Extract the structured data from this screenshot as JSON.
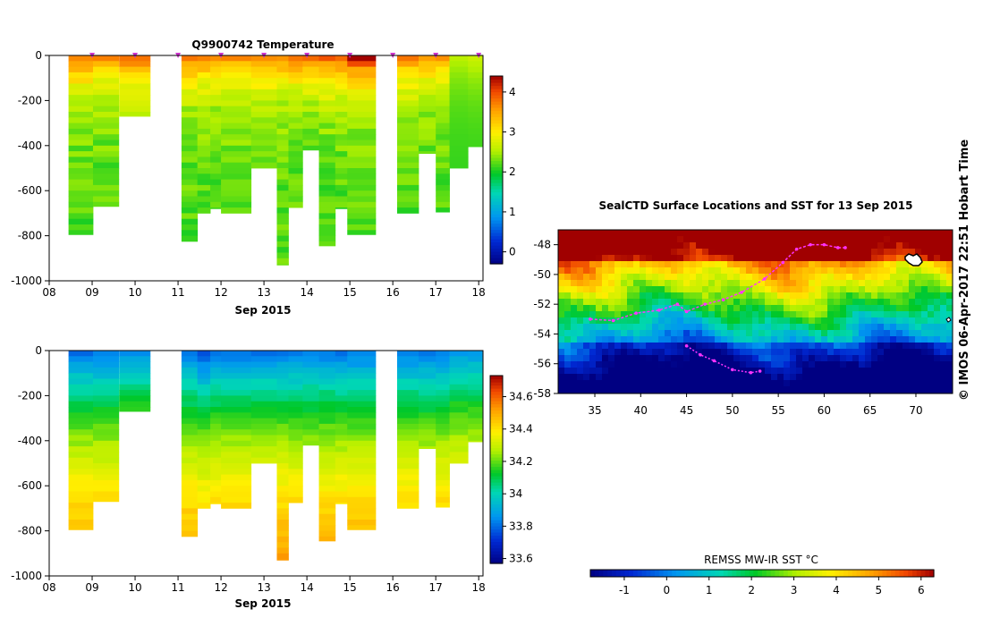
{
  "chart_data": [
    {
      "type": "heatmap",
      "title": "Q9900742  Temperature",
      "xlabel": "Sep 2015",
      "ylabel": "",
      "xlim": [
        8.0,
        18.1
      ],
      "ylim": [
        -1000,
        0
      ],
      "x_ticks": [
        "08",
        "09",
        "10",
        "11",
        "12",
        "13",
        "14",
        "15",
        "16",
        "17",
        "18"
      ],
      "y_ticks": [
        "0",
        "-200",
        "-400",
        "-600",
        "-800",
        "-1000"
      ],
      "colorbar": {
        "min": -0.3,
        "max": 4.4,
        "ticks": [
          "0",
          "1",
          "2",
          "3",
          "4"
        ]
      },
      "profile_markers_x": [
        9.0,
        10.0,
        11.0,
        12.0,
        13.0,
        14.0,
        15.0,
        16.0,
        17.0,
        18.0
      ],
      "profiles": [
        {
          "x": 8.45,
          "w": 0.57,
          "max_depth": 795,
          "surface": 4.0
        },
        {
          "x": 9.02,
          "w": 0.6,
          "max_depth": 670,
          "surface": 3.7
        },
        {
          "x": 9.63,
          "w": 0.72,
          "max_depth": 270,
          "surface": 4.1
        },
        {
          "x": 11.08,
          "w": 0.37,
          "max_depth": 825,
          "surface": 3.9
        },
        {
          "x": 11.45,
          "w": 0.3,
          "max_depth": 700,
          "surface": 3.9
        },
        {
          "x": 11.75,
          "w": 0.25,
          "max_depth": 680,
          "surface": 3.8
        },
        {
          "x": 12.0,
          "w": 0.7,
          "max_depth": 700,
          "surface": 3.8
        },
        {
          "x": 12.7,
          "w": 0.6,
          "max_depth": 500,
          "surface": 3.9
        },
        {
          "x": 13.3,
          "w": 0.27,
          "max_depth": 930,
          "surface": 3.8
        },
        {
          "x": 13.57,
          "w": 0.33,
          "max_depth": 675,
          "surface": 3.9
        },
        {
          "x": 13.9,
          "w": 0.38,
          "max_depth": 420,
          "surface": 3.8
        },
        {
          "x": 14.28,
          "w": 0.38,
          "max_depth": 845,
          "surface": 4.0
        },
        {
          "x": 14.66,
          "w": 0.28,
          "max_depth": 680,
          "surface": 4.1
        },
        {
          "x": 14.94,
          "w": 0.66,
          "max_depth": 795,
          "surface": 4.4
        },
        {
          "x": 16.1,
          "w": 0.5,
          "max_depth": 700,
          "surface": 3.8
        },
        {
          "x": 16.6,
          "w": 0.4,
          "max_depth": 435,
          "surface": 3.7
        },
        {
          "x": 17.0,
          "w": 0.32,
          "max_depth": 695,
          "surface": 3.6
        },
        {
          "x": 17.32,
          "w": 0.43,
          "max_depth": 500,
          "surface": 2.6
        },
        {
          "x": 17.75,
          "w": 0.33,
          "max_depth": 405,
          "surface": 2.7
        }
      ]
    },
    {
      "type": "heatmap",
      "title": "",
      "xlabel": "Sep 2015",
      "ylabel": "",
      "xlim": [
        8.0,
        18.1
      ],
      "ylim": [
        -1000,
        0
      ],
      "x_ticks": [
        "08",
        "09",
        "10",
        "11",
        "12",
        "13",
        "14",
        "15",
        "16",
        "17",
        "18"
      ],
      "y_ticks": [
        "0",
        "-200",
        "-400",
        "-600",
        "-800",
        "-1000"
      ],
      "colorbar": {
        "min": 33.57,
        "max": 34.73,
        "ticks": [
          "33.6",
          "33.8",
          "34",
          "34.2",
          "34.4",
          "34.6"
        ]
      },
      "profiles": [
        {
          "x": 8.45,
          "w": 0.57,
          "max_depth": 795,
          "surface": 33.8
        },
        {
          "x": 9.02,
          "w": 0.6,
          "max_depth": 670,
          "surface": 33.8
        },
        {
          "x": 9.63,
          "w": 0.72,
          "max_depth": 270,
          "surface": 33.85
        },
        {
          "x": 11.08,
          "w": 0.37,
          "max_depth": 825,
          "surface": 33.8
        },
        {
          "x": 11.45,
          "w": 0.3,
          "max_depth": 700,
          "surface": 33.75
        },
        {
          "x": 11.75,
          "w": 0.25,
          "max_depth": 680,
          "surface": 33.8
        },
        {
          "x": 12.0,
          "w": 0.7,
          "max_depth": 700,
          "surface": 33.8
        },
        {
          "x": 12.7,
          "w": 0.6,
          "max_depth": 500,
          "surface": 33.8
        },
        {
          "x": 13.3,
          "w": 0.27,
          "max_depth": 930,
          "surface": 33.8
        },
        {
          "x": 13.57,
          "w": 0.33,
          "max_depth": 675,
          "surface": 33.8
        },
        {
          "x": 13.9,
          "w": 0.38,
          "max_depth": 420,
          "surface": 33.8
        },
        {
          "x": 14.28,
          "w": 0.38,
          "max_depth": 845,
          "surface": 33.8
        },
        {
          "x": 14.66,
          "w": 0.28,
          "max_depth": 680,
          "surface": 33.8
        },
        {
          "x": 14.94,
          "w": 0.66,
          "max_depth": 795,
          "surface": 33.8
        },
        {
          "x": 16.1,
          "w": 0.5,
          "max_depth": 700,
          "surface": 33.8
        },
        {
          "x": 16.6,
          "w": 0.4,
          "max_depth": 435,
          "surface": 33.8
        },
        {
          "x": 17.0,
          "w": 0.32,
          "max_depth": 695,
          "surface": 33.8
        },
        {
          "x": 17.32,
          "w": 0.43,
          "max_depth": 500,
          "surface": 33.85
        },
        {
          "x": 17.75,
          "w": 0.33,
          "max_depth": 405,
          "surface": 33.85
        }
      ]
    },
    {
      "type": "heatmap",
      "title": "SealCTD Surface Locations and SST for 13 Sep 2015",
      "xlabel": "",
      "ylabel": "",
      "xlim": [
        31,
        74
      ],
      "ylim": [
        -58,
        -47
      ],
      "x_ticks": [
        "35",
        "40",
        "45",
        "50",
        "55",
        "60",
        "65",
        "70"
      ],
      "y_ticks": [
        "-48",
        "-50",
        "-52",
        "-54",
        "-56",
        "-58"
      ],
      "colorbar": {
        "label": "REMSS MW-IR SST °C",
        "min": -1.8,
        "max": 6.3,
        "ticks": [
          "-1",
          "0",
          "1",
          "2",
          "3",
          "4",
          "5",
          "6"
        ]
      },
      "track": [
        [
          34.5,
          -53.0
        ],
        [
          37,
          -53.1
        ],
        [
          39.5,
          -52.6
        ],
        [
          42,
          -52.4
        ],
        [
          44,
          -52.0
        ],
        [
          45,
          -52.5
        ],
        [
          47,
          -52.0
        ],
        [
          49,
          -51.7
        ],
        [
          51,
          -51.2
        ],
        [
          53.5,
          -50.3
        ],
        [
          55.5,
          -49.2
        ],
        [
          57,
          -48.3
        ],
        [
          58.5,
          -48.0
        ],
        [
          60,
          -48.0
        ],
        [
          61.5,
          -48.2
        ],
        [
          62.3,
          -48.2
        ]
      ],
      "track2": [
        [
          45,
          -54.8
        ],
        [
          46.5,
          -55.4
        ],
        [
          48,
          -55.8
        ],
        [
          50,
          -56.4
        ],
        [
          52,
          -56.6
        ],
        [
          53,
          -56.5
        ]
      ],
      "credit": "©  IMOS 06-Apr-2017 22:51 Hobart Time"
    }
  ],
  "colors": {
    "track": "#ff33ff",
    "axis": "#000000"
  }
}
